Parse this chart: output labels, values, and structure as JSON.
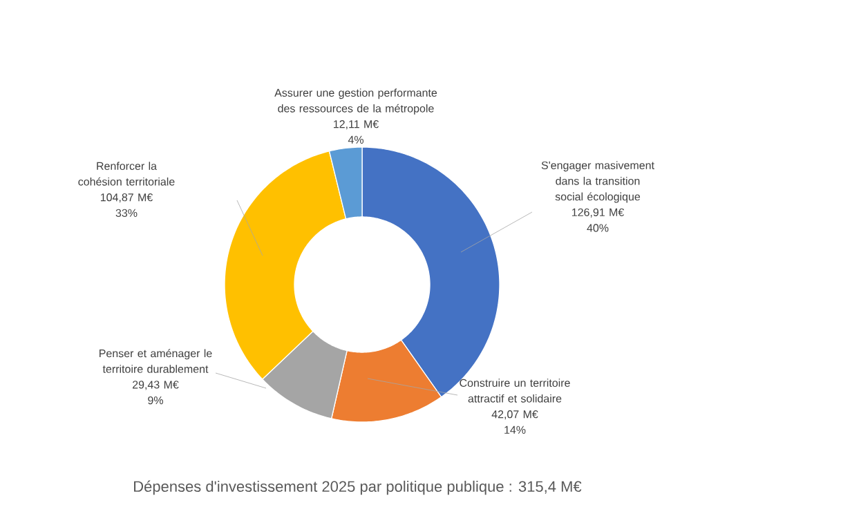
{
  "chart_data": {
    "type": "donut",
    "title": "Dépenses d'investissement 2025 par politique publique : 315,4 M€",
    "categories": [
      "S'engager masivement dans la transition social écologique",
      "Construire un territoire attractif et solidaire",
      "Penser et aménager le territoire durablement",
      "Renforcer la cohésion territoriale",
      "Assurer une gestion performante des ressources de la métropole"
    ],
    "values": [
      126.91,
      42.07,
      29.43,
      104.87,
      12.11
    ],
    "colors": [
      "#4472c4",
      "#ed7d31",
      "#a5a5a5",
      "#ffc000",
      "#5b9bd5"
    ],
    "value_labels": [
      "126,91 M€",
      "42,07 M€",
      "29,43 M€",
      "104,87 M€",
      "12,11 M€"
    ],
    "annotations": [
      "40%",
      "14%",
      "9%",
      "33%",
      "4%"
    ]
  }
}
